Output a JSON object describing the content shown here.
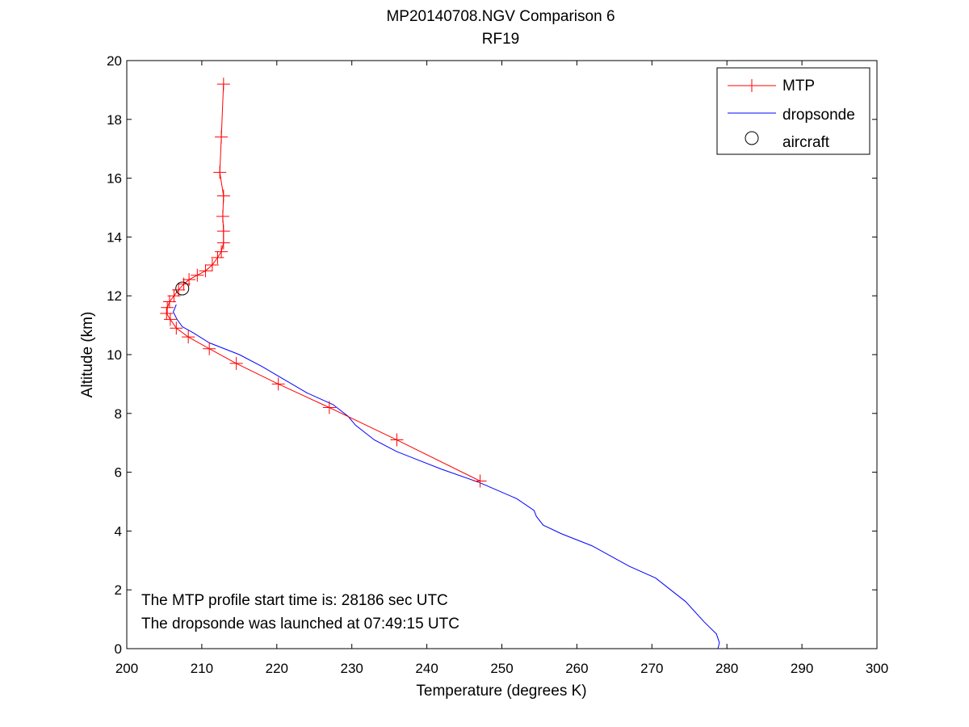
{
  "chart_data": {
    "type": "line",
    "title": "MP20140708.NGV Comparison 6",
    "subtitle": "RF19",
    "xlabel": "Temperature (degrees K)",
    "ylabel": "Altitude (km)",
    "xlim": [
      200,
      300
    ],
    "ylim": [
      0,
      20
    ],
    "xticks": [
      200,
      210,
      220,
      230,
      240,
      250,
      260,
      270,
      280,
      290,
      300
    ],
    "yticks": [
      0,
      2,
      4,
      6,
      8,
      10,
      12,
      14,
      16,
      18,
      20
    ],
    "grid": false,
    "legend_position": "top-right",
    "series": [
      {
        "name": "MTP",
        "color": "#ff0000",
        "marker": "plus",
        "points": [
          [
            247.1,
            5.7
          ],
          [
            236.0,
            7.1
          ],
          [
            227.0,
            8.2
          ],
          [
            220.2,
            9.0
          ],
          [
            214.6,
            9.7
          ],
          [
            211.0,
            10.2
          ],
          [
            208.2,
            10.6
          ],
          [
            206.6,
            10.9
          ],
          [
            205.8,
            11.2
          ],
          [
            205.3,
            11.4
          ],
          [
            205.4,
            11.6
          ],
          [
            205.7,
            11.8
          ],
          [
            206.3,
            12.0
          ],
          [
            206.9,
            12.2
          ],
          [
            207.6,
            12.4
          ],
          [
            208.3,
            12.55
          ],
          [
            209.4,
            12.7
          ],
          [
            210.5,
            12.85
          ],
          [
            211.4,
            13.05
          ],
          [
            212.1,
            13.3
          ],
          [
            212.6,
            13.5
          ],
          [
            212.9,
            13.8
          ],
          [
            212.9,
            14.2
          ],
          [
            212.8,
            14.7
          ],
          [
            212.9,
            15.4
          ],
          [
            212.4,
            16.2
          ],
          [
            212.6,
            17.4
          ],
          [
            212.9,
            19.2
          ]
        ]
      },
      {
        "name": "dropsonde",
        "color": "#0000ff",
        "marker": "none",
        "points": [
          [
            278.8,
            0.0
          ],
          [
            279.0,
            0.2
          ],
          [
            278.6,
            0.5
          ],
          [
            277.0,
            0.9
          ],
          [
            274.5,
            1.6
          ],
          [
            270.5,
            2.4
          ],
          [
            267.0,
            2.8
          ],
          [
            262.0,
            3.5
          ],
          [
            258.0,
            3.9
          ],
          [
            255.5,
            4.2
          ],
          [
            254.6,
            4.5
          ],
          [
            254.3,
            4.7
          ],
          [
            252.0,
            5.1
          ],
          [
            247.0,
            5.65
          ],
          [
            242.0,
            6.1
          ],
          [
            236.0,
            6.7
          ],
          [
            233.0,
            7.1
          ],
          [
            230.5,
            7.6
          ],
          [
            229.5,
            7.9
          ],
          [
            227.5,
            8.3
          ],
          [
            224.0,
            8.7
          ],
          [
            221.0,
            9.15
          ],
          [
            218.0,
            9.6
          ],
          [
            215.0,
            10.0
          ],
          [
            211.0,
            10.4
          ],
          [
            208.8,
            10.75
          ],
          [
            207.4,
            10.95
          ],
          [
            206.7,
            11.2
          ],
          [
            206.2,
            11.45
          ],
          [
            206.6,
            11.7
          ]
        ]
      },
      {
        "name": "aircraft",
        "color": "#000000",
        "marker": "circle",
        "points": [
          [
            207.4,
            12.25
          ]
        ]
      }
    ],
    "annotations": [
      "The MTP profile start time is: 28186 sec UTC",
      "The dropsonde was launched at 07:49:15 UTC"
    ]
  }
}
